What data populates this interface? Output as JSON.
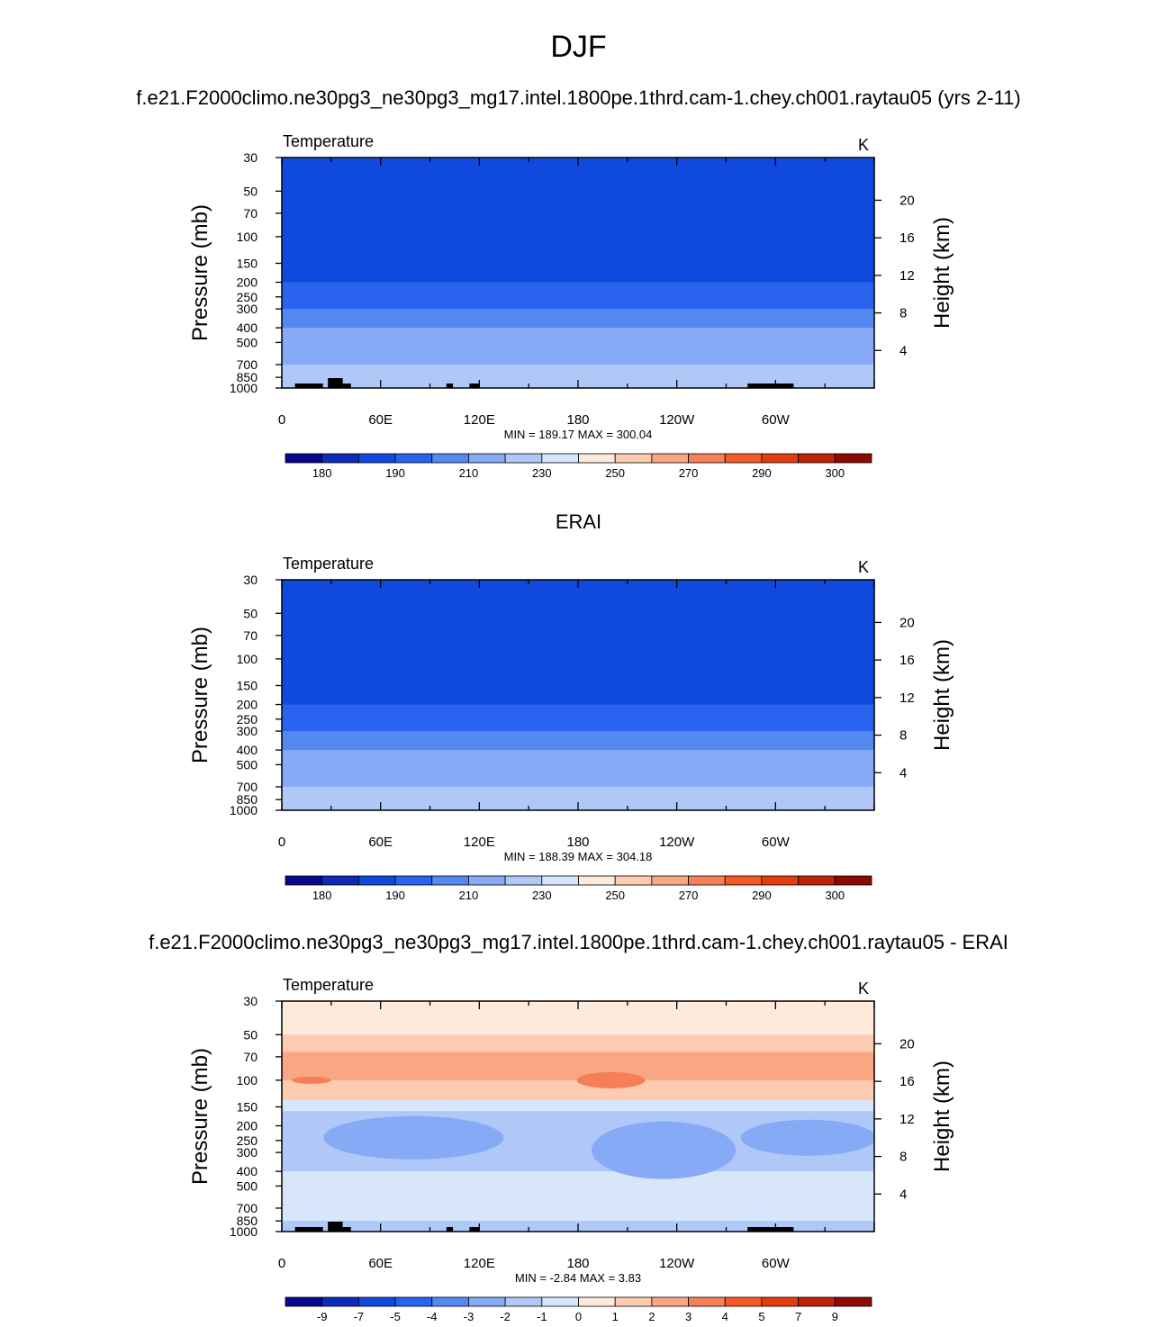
{
  "page_title": "DJF",
  "panels": [
    {
      "title": "f.e21.F2000climo.ne30pg3_ne30pg3_mg17.intel.1800pe.1thrd.cam-1.chey.ch001.raytau05 (yrs 2-11)",
      "variable": "Temperature",
      "units": "K",
      "stats": "MIN = 189.17  MAX = 300.04",
      "colorbar": {
        "colors": [
          "#08088a",
          "#0d2bb8",
          "#0f49dd",
          "#2a63ef",
          "#5589f2",
          "#86aaf5",
          "#b0c8f8",
          "#d7e6fb",
          "#fdeadb",
          "#fccbb0",
          "#f9a683",
          "#f67f57",
          "#f35a28",
          "#e33d0e",
          "#bf2305",
          "#8c0a02"
        ],
        "labels": [
          "180",
          "190",
          "210",
          "230",
          "250",
          "270",
          "290",
          "300"
        ]
      }
    },
    {
      "title": "ERAI",
      "variable": "Temperature",
      "units": "K",
      "stats": "MIN = 188.39  MAX = 304.18",
      "colorbar": {
        "colors": [
          "#08088a",
          "#0d2bb8",
          "#0f49dd",
          "#2a63ef",
          "#5589f2",
          "#86aaf5",
          "#b0c8f8",
          "#d7e6fb",
          "#fdeadb",
          "#fccbb0",
          "#f9a683",
          "#f67f57",
          "#f35a28",
          "#e33d0e",
          "#bf2305",
          "#8c0a02"
        ],
        "labels": [
          "180",
          "190",
          "210",
          "230",
          "250",
          "270",
          "290",
          "300"
        ]
      }
    },
    {
      "title": "f.e21.F2000climo.ne30pg3_ne30pg3_mg17.intel.1800pe.1thrd.cam-1.chey.ch001.raytau05 - ERAI",
      "variable": "Temperature",
      "units": "K",
      "stats": "MIN =  -2.84  MAX =   3.83",
      "colorbar": {
        "colors": [
          "#08088a",
          "#0d2bb8",
          "#0f49dd",
          "#2a63ef",
          "#5589f2",
          "#86aaf5",
          "#b0c8f8",
          "#d7e6fb",
          "#fdeadb",
          "#fccbb0",
          "#f9a683",
          "#f67f57",
          "#f35a28",
          "#e33d0e",
          "#bf2305",
          "#8c0a02"
        ],
        "labels": [
          "-9",
          "-7",
          "-5",
          "-4",
          "-3",
          "-2",
          "-1",
          "0",
          "1",
          "2",
          "3",
          "4",
          "5",
          "7",
          "9"
        ]
      }
    }
  ],
  "chart_data": [
    {
      "type": "heatmap",
      "title": "f.e21.F2000climo.ne30pg3_ne30pg3_mg17.intel.1800pe.1thrd.cam-1.chey.ch001.raytau05 (yrs 2-11)",
      "ylabel": "Pressure (mb)",
      "y2label": "Height (km)",
      "x_ticks": [
        "0",
        "60E",
        "120E",
        "180",
        "120W",
        "60W"
      ],
      "x_tick_values": [
        0,
        60,
        120,
        180,
        240,
        300
      ],
      "xlim": [
        0,
        360
      ],
      "y_ticks": [
        "30",
        "50",
        "70",
        "100",
        "150",
        "200",
        "250",
        "300",
        "400",
        "500",
        "700",
        "850",
        "1000"
      ],
      "y_tick_values": [
        30,
        50,
        70,
        100,
        150,
        200,
        250,
        300,
        400,
        500,
        700,
        850,
        1000
      ],
      "ylim": [
        1000,
        30
      ],
      "y_scale": "log",
      "y2_ticks": [
        "4",
        "8",
        "12",
        "16",
        "20"
      ],
      "y2_tick_values": [
        4,
        8,
        12,
        16,
        20
      ],
      "levels": [
        180,
        190,
        210,
        230,
        250,
        270,
        290,
        300
      ],
      "bands": [
        {
          "p": 30,
          "v": 210
        },
        {
          "p": 40,
          "v": 205
        },
        {
          "p": 55,
          "v": 200
        },
        {
          "p": 100,
          "v": 192
        },
        {
          "p": 150,
          "v": 200
        },
        {
          "p": 200,
          "v": 212
        },
        {
          "p": 250,
          "v": 222
        },
        {
          "p": 300,
          "v": 230
        },
        {
          "p": 400,
          "v": 245
        },
        {
          "p": 500,
          "v": 255
        },
        {
          "p": 600,
          "v": 262
        },
        {
          "p": 700,
          "v": 268
        },
        {
          "p": 850,
          "v": 278
        },
        {
          "p": 1000,
          "v": 288
        }
      ],
      "min": 189.17,
      "max": 300.04
    },
    {
      "type": "heatmap",
      "title": "ERAI",
      "ylabel": "Pressure (mb)",
      "y2label": "Height (km)",
      "x_ticks": [
        "0",
        "60E",
        "120E",
        "180",
        "120W",
        "60W"
      ],
      "x_tick_values": [
        0,
        60,
        120,
        180,
        240,
        300
      ],
      "xlim": [
        0,
        360
      ],
      "y_ticks": [
        "30",
        "50",
        "70",
        "100",
        "150",
        "200",
        "250",
        "300",
        "400",
        "500",
        "700",
        "850",
        "1000"
      ],
      "y_tick_values": [
        30,
        50,
        70,
        100,
        150,
        200,
        250,
        300,
        400,
        500,
        700,
        850,
        1000
      ],
      "ylim": [
        1000,
        30
      ],
      "y_scale": "log",
      "y2_ticks": [
        "4",
        "8",
        "12",
        "16",
        "20"
      ],
      "y2_tick_values": [
        4,
        8,
        12,
        16,
        20
      ],
      "levels": [
        180,
        190,
        210,
        230,
        250,
        270,
        290,
        300
      ],
      "bands": [
        {
          "p": 30,
          "v": 212
        },
        {
          "p": 40,
          "v": 205
        },
        {
          "p": 55,
          "v": 198
        },
        {
          "p": 100,
          "v": 190
        },
        {
          "p": 150,
          "v": 199
        },
        {
          "p": 200,
          "v": 212
        },
        {
          "p": 250,
          "v": 222
        },
        {
          "p": 300,
          "v": 231
        },
        {
          "p": 400,
          "v": 246
        },
        {
          "p": 500,
          "v": 256
        },
        {
          "p": 600,
          "v": 263
        },
        {
          "p": 700,
          "v": 270
        },
        {
          "p": 850,
          "v": 280
        },
        {
          "p": 1000,
          "v": 292
        }
      ],
      "min": 188.39,
      "max": 304.18
    },
    {
      "type": "heatmap",
      "title": "f.e21.F2000climo.ne30pg3_ne30pg3_mg17.intel.1800pe.1thrd.cam-1.chey.ch001.raytau05 - ERAI",
      "ylabel": "Pressure (mb)",
      "y2label": "Height (km)",
      "x_ticks": [
        "0",
        "60E",
        "120E",
        "180",
        "120W",
        "60W"
      ],
      "x_tick_values": [
        0,
        60,
        120,
        180,
        240,
        300
      ],
      "xlim": [
        0,
        360
      ],
      "y_ticks": [
        "30",
        "50",
        "70",
        "100",
        "150",
        "200",
        "250",
        "300",
        "400",
        "500",
        "700",
        "850",
        "1000"
      ],
      "y_tick_values": [
        30,
        50,
        70,
        100,
        150,
        200,
        250,
        300,
        400,
        500,
        700,
        850,
        1000
      ],
      "ylim": [
        1000,
        30
      ],
      "y_scale": "log",
      "y2_ticks": [
        "4",
        "8",
        "12",
        "16",
        "20"
      ],
      "y2_tick_values": [
        4,
        8,
        12,
        16,
        20
      ],
      "levels": [
        -9,
        -7,
        -5,
        -4,
        -3,
        -2,
        -1,
        0,
        1,
        2,
        3,
        4,
        5,
        7,
        9
      ],
      "bands": [
        {
          "p": 30,
          "v": 0.5
        },
        {
          "p": 50,
          "v": 0.5
        },
        {
          "p": 65,
          "v": 1.5
        },
        {
          "p": 100,
          "v": 2.5
        },
        {
          "p": 135,
          "v": 0.5
        },
        {
          "p": 160,
          "v": -1.5
        },
        {
          "p": 250,
          "v": -2.5
        },
        {
          "p": 400,
          "v": -1.5
        },
        {
          "p": 600,
          "v": -0.5
        },
        {
          "p": 850,
          "v": -1.5
        },
        {
          "p": 1000,
          "v": -1.5
        }
      ],
      "min": -2.84,
      "max": 3.83
    }
  ]
}
